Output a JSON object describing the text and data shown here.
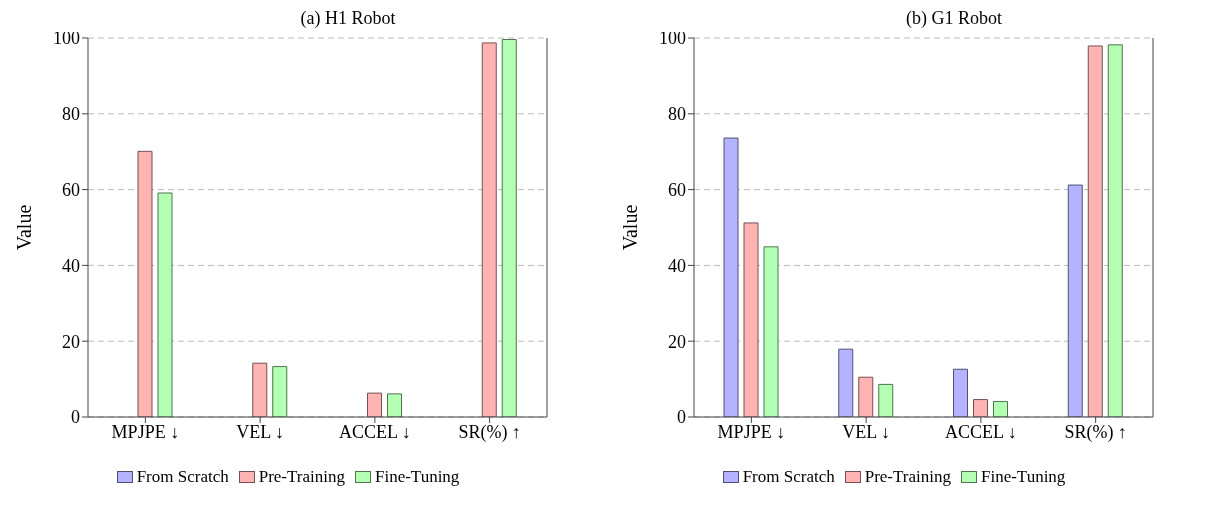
{
  "chart_data": [
    {
      "type": "bar",
      "title": "(a) H1 Robot",
      "ylabel": "Value",
      "categories": [
        "MPJPE ↓",
        "VEL ↓",
        "ACCEL ↓",
        "SR(%) ↑"
      ],
      "series": [
        {
          "name": "From Scratch",
          "color": "#b3b3ff",
          "values": [
            0,
            0,
            0,
            0
          ]
        },
        {
          "name": "Pre-Training",
          "color": "#ffb3b3",
          "values": [
            70.1,
            14.2,
            6.3,
            98.7
          ]
        },
        {
          "name": "Fine-Tuning",
          "color": "#b3ffb3",
          "values": [
            59.1,
            13.3,
            6.1,
            99.6
          ]
        }
      ],
      "ylim": [
        0,
        100
      ],
      "yticks": [
        0,
        20,
        40,
        60,
        80,
        100
      ],
      "grid": "y",
      "legend": "bottom"
    },
    {
      "type": "bar",
      "title": "(b) G1 Robot",
      "ylabel": "Value",
      "categories": [
        "MPJPE ↓",
        "VEL ↓",
        "ACCEL ↓",
        "SR(%) ↑"
      ],
      "series": [
        {
          "name": "From Scratch",
          "color": "#b3b3ff",
          "values": [
            73.6,
            17.9,
            12.6,
            61.2
          ]
        },
        {
          "name": "Pre-Training",
          "color": "#ffb3b3",
          "values": [
            51.2,
            10.5,
            4.6,
            97.9
          ]
        },
        {
          "name": "Fine-Tuning",
          "color": "#b3ffb3",
          "values": [
            44.9,
            8.6,
            4.1,
            98.2
          ]
        }
      ],
      "ylim": [
        0,
        100
      ],
      "yticks": [
        0,
        20,
        40,
        60,
        80,
        100
      ],
      "grid": "y",
      "legend": "bottom"
    }
  ]
}
